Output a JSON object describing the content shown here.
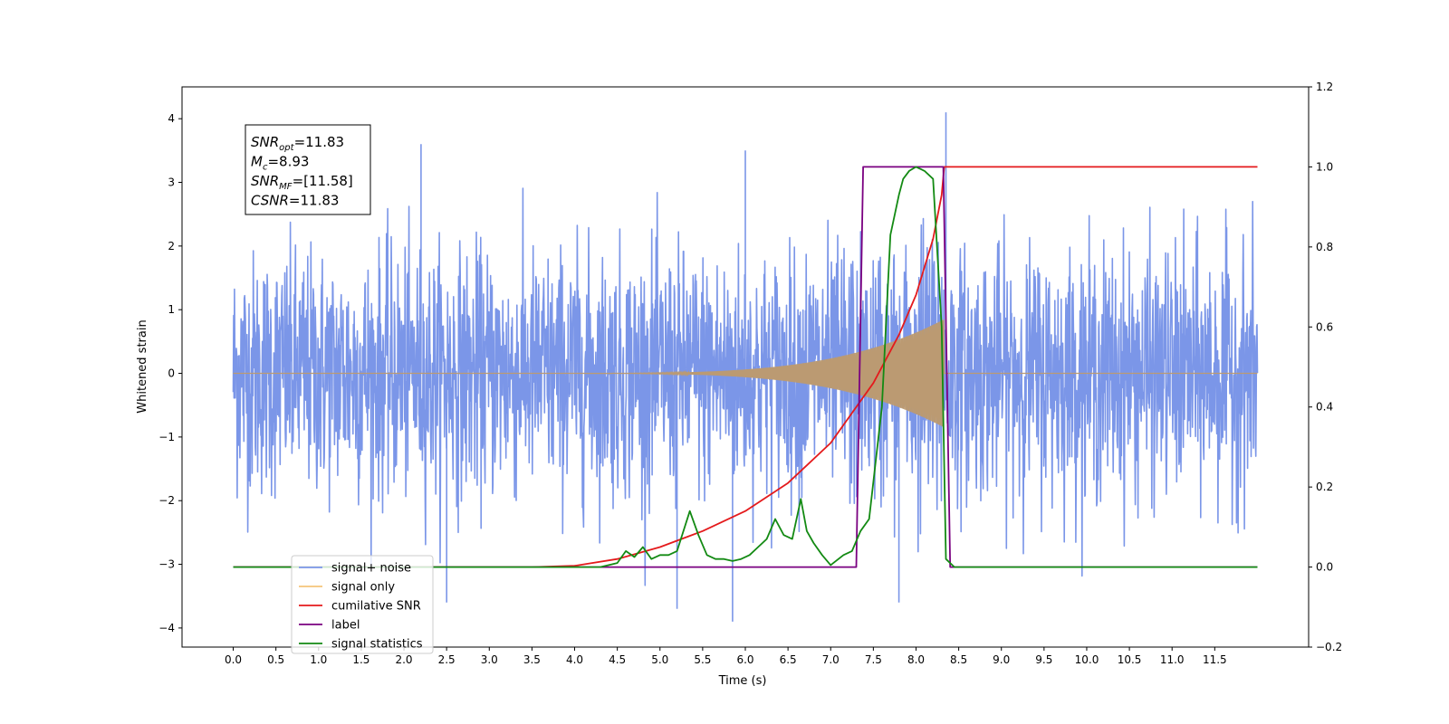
{
  "chart_data": {
    "type": "line",
    "title": "",
    "xlabel": "Time (s)",
    "ylabel": "Whitened strain",
    "xlim": [
      -0.6,
      12.6
    ],
    "ylim": [
      -4.3,
      4.5
    ],
    "y2lim": [
      -0.2,
      1.2
    ],
    "xticks": [
      "0.0",
      "0.5",
      "1.0",
      "1.5",
      "2.0",
      "2.5",
      "3.0",
      "3.5",
      "4.0",
      "4.5",
      "5.0",
      "5.5",
      "6.0",
      "6.5",
      "7.0",
      "7.5",
      "8.0",
      "8.5",
      "9.0",
      "9.5",
      "10.0",
      "10.5",
      "11.0",
      "11.5"
    ],
    "yticks": [
      "4",
      "3",
      "2",
      "1",
      "0",
      "−1",
      "−2",
      "−3",
      "−4"
    ],
    "y2ticks": [
      "1.2",
      "1.0",
      "0.8",
      "0.6",
      "0.4",
      "0.2",
      "0.0",
      "−0.2"
    ],
    "grid": false,
    "legend_position": "lower-left",
    "annotation": [
      {
        "base": "SNR",
        "sub": "opt",
        "rest": "=11.83"
      },
      {
        "base": "M",
        "sub": "c",
        "rest": "=8.93"
      },
      {
        "base": "SNR",
        "sub": "MF",
        "rest": "=[11.58]"
      },
      {
        "base": "CSNR",
        "sub": "",
        "rest": "=11.83"
      }
    ],
    "series": [
      {
        "name": "signal+ noise",
        "axis": "left",
        "color": "#7b96e8",
        "description": "whitened noise with embedded chirp, amplitude roughly ±2.5 with peaks to 4.1",
        "peak_max": 4.1,
        "peak_min": -3.9
      },
      {
        "name": "signal only",
        "axis": "left",
        "color": "#f5c57a",
        "description": "chirp growing from ~4.3 s to merger at ~8.3 s, peak amplitude ~0.85"
      },
      {
        "name": "cumilative SNR",
        "axis": "right",
        "color": "#e41a1c",
        "x": [
          0,
          3.5,
          4.0,
          4.5,
          5.0,
          5.5,
          6.0,
          6.5,
          7.0,
          7.5,
          7.8,
          8.0,
          8.2,
          8.3,
          8.33,
          12.0
        ],
        "y": [
          0,
          0.0,
          0.003,
          0.02,
          0.05,
          0.09,
          0.14,
          0.21,
          0.31,
          0.46,
          0.58,
          0.68,
          0.82,
          0.93,
          1.0,
          1.0
        ]
      },
      {
        "name": "label",
        "axis": "right",
        "color": "#7a0080",
        "x": [
          0,
          7.3,
          7.38,
          8.32,
          8.4,
          12.0
        ],
        "y": [
          0,
          0,
          1.0,
          1.0,
          0,
          0
        ]
      },
      {
        "name": "signal statistics",
        "axis": "right",
        "color": "#138a13",
        "x": [
          0,
          4.0,
          4.3,
          4.5,
          4.6,
          4.7,
          4.8,
          4.9,
          5.0,
          5.1,
          5.2,
          5.35,
          5.45,
          5.55,
          5.65,
          5.75,
          5.85,
          5.95,
          6.05,
          6.15,
          6.25,
          6.35,
          6.45,
          6.55,
          6.65,
          6.72,
          6.8,
          6.9,
          7.0,
          7.15,
          7.25,
          7.35,
          7.45,
          7.6,
          7.7,
          7.8,
          7.85,
          7.92,
          8.0,
          8.1,
          8.2,
          8.3,
          8.35,
          8.45,
          8.55,
          12.0
        ],
        "y": [
          0,
          0,
          0.0,
          0.01,
          0.04,
          0.025,
          0.05,
          0.02,
          0.03,
          0.03,
          0.04,
          0.14,
          0.08,
          0.03,
          0.02,
          0.02,
          0.015,
          0.02,
          0.03,
          0.05,
          0.07,
          0.12,
          0.08,
          0.07,
          0.17,
          0.09,
          0.06,
          0.03,
          0.005,
          0.03,
          0.04,
          0.09,
          0.12,
          0.4,
          0.83,
          0.93,
          0.97,
          0.99,
          1.0,
          0.99,
          0.97,
          0.6,
          0.02,
          0.0,
          0.0,
          0.0
        ]
      }
    ],
    "legend_entries": [
      {
        "name": "signal+ noise",
        "color": "#7b96e8"
      },
      {
        "name": "signal only",
        "color": "#f5c57a"
      },
      {
        "name": "cumilative SNR",
        "color": "#e41a1c"
      },
      {
        "name": "label",
        "color": "#7a0080"
      },
      {
        "name": "signal statistics",
        "color": "#138a13"
      }
    ]
  }
}
